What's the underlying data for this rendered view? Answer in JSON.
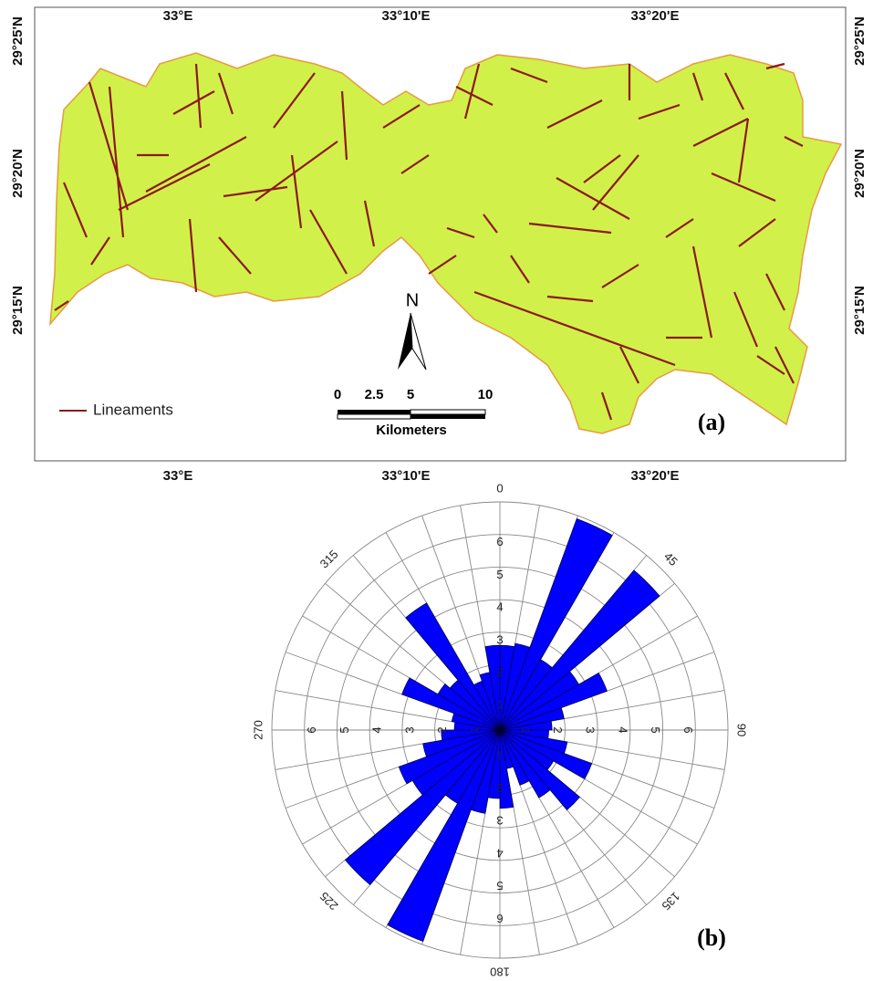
{
  "map": {
    "lon_labels": [
      "33°E",
      "33°10'E",
      "33°20'E"
    ],
    "lat_labels": [
      "29°25'N",
      "29°20'N",
      "29°15'N"
    ],
    "legend": "Lineaments",
    "north": "N",
    "scale": {
      "labels": [
        "0",
        "2.5",
        "5",
        "10"
      ],
      "unit": "Kilometers"
    },
    "panel_label": "(a)"
  },
  "chart_data": {
    "type": "rose",
    "bin_width": 10,
    "color": "#0000ff",
    "values": [
      2.6,
      2.7,
      6.9,
      2.5,
      6.4,
      2.8,
      3.5,
      2.0,
      1.6,
      1.5,
      2.1,
      3.0,
      1.9,
      3.2,
      2.4,
      1.8,
      1.2,
      2.4,
      2.1,
      2.6,
      6.9,
      2.6,
      6.2,
      3.1,
      3.3,
      2.4,
      1.8,
      1.4,
      1.5,
      3.2,
      2.2,
      2.0,
      4.5,
      1.6,
      1.8,
      2.6
    ],
    "rlim": [
      0,
      7
    ],
    "rticks": [
      1,
      2,
      3,
      4,
      5,
      6
    ],
    "angle_ticks": [
      0,
      45,
      90,
      135,
      180,
      225,
      270,
      315
    ],
    "panel_label": "(b)"
  }
}
